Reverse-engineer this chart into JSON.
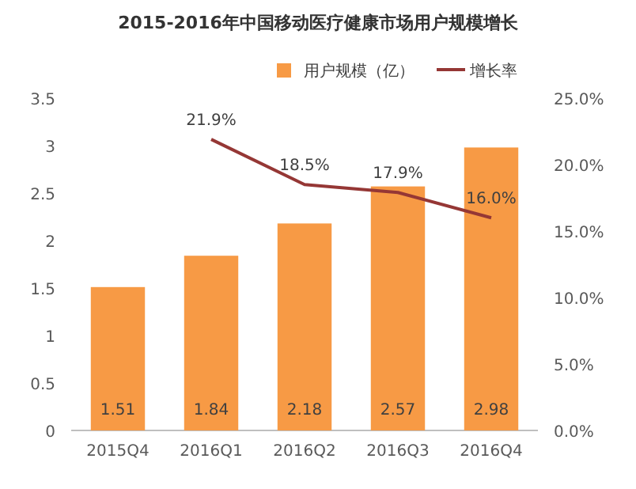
{
  "chart_data": {
    "type": "bar",
    "title": "2015-2016年中国移动医疗健康市场用户规模增长",
    "categories": [
      "2015Q4",
      "2016Q1",
      "2016Q2",
      "2016Q3",
      "2016Q4"
    ],
    "series": [
      {
        "name": "用户规模（亿）",
        "color": "#f79a45",
        "values": [
          1.51,
          1.84,
          2.18,
          2.57,
          2.98
        ],
        "value_labels": [
          "1.51",
          "1.84",
          "2.18",
          "2.57",
          "2.98"
        ]
      },
      {
        "name": "增长率",
        "type": "line",
        "axis": "y2",
        "color": "#953735",
        "values": [
          null,
          21.9,
          18.5,
          17.9,
          16.0
        ],
        "value_labels": [
          null,
          "21.9%",
          "18.5%",
          "17.9%",
          "16.0%"
        ]
      }
    ],
    "ylim": [
      0,
      3.5
    ],
    "yticks": [
      0,
      0.5,
      1,
      1.5,
      2,
      2.5,
      3,
      3.5
    ],
    "y2lim": [
      0,
      25
    ],
    "y2ticks": [
      {
        "value": 0,
        "label": "0.0%"
      },
      {
        "value": 5,
        "label": "5.0%"
      },
      {
        "value": 10,
        "label": "10.0%"
      },
      {
        "value": 15,
        "label": "15.0%"
      },
      {
        "value": 20,
        "label": "20.0%"
      },
      {
        "value": 25,
        "label": "25.0%"
      }
    ],
    "legend": "top",
    "marker": "none",
    "line_style": "solid",
    "grid": false
  }
}
